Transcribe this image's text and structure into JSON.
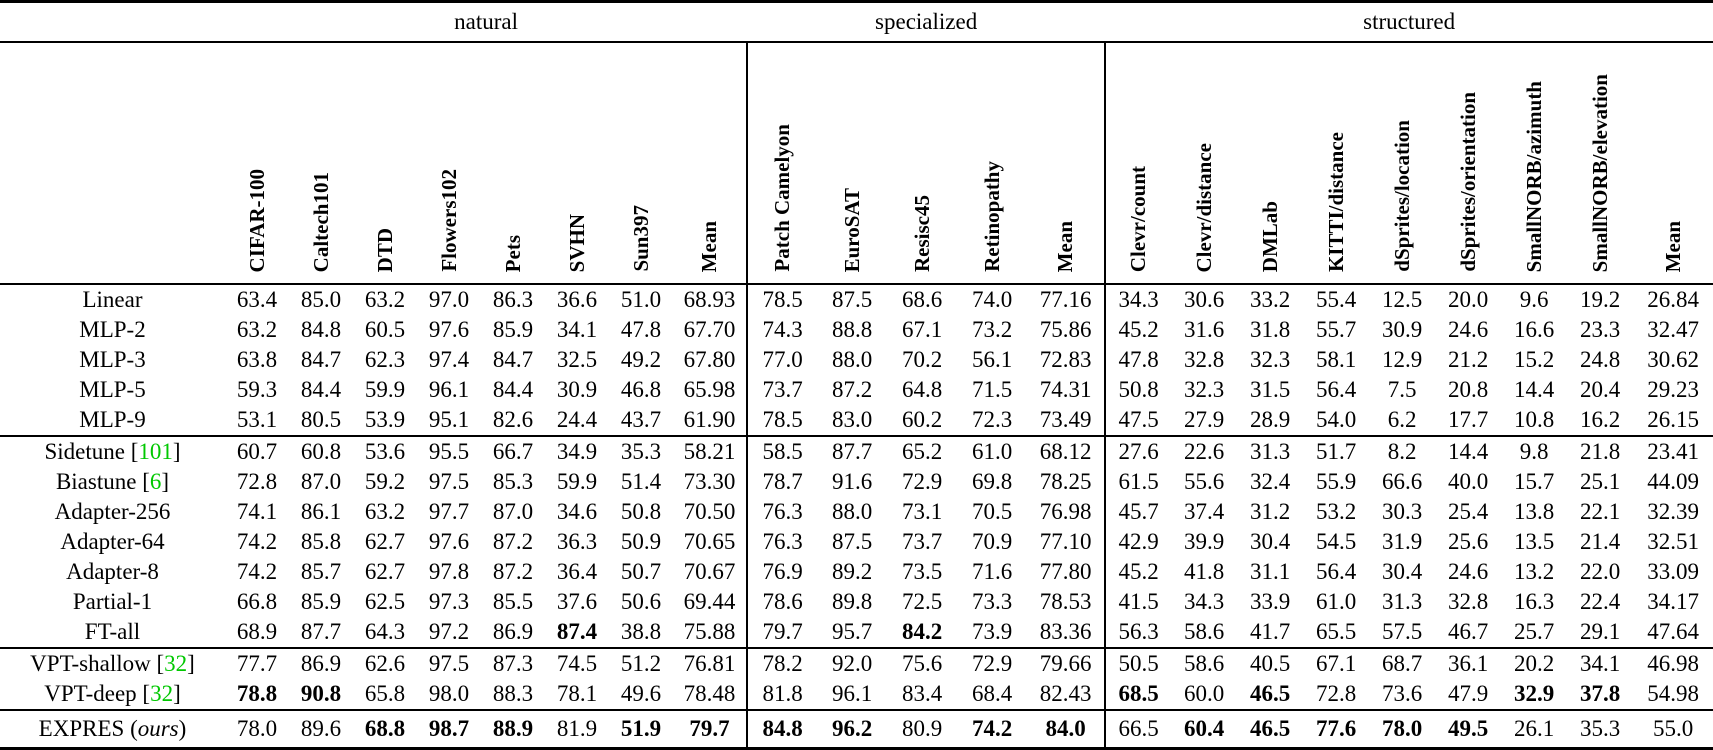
{
  "table": {
    "cite_open": "[",
    "cite_close": "]",
    "ours_open": "(",
    "ours_text": "ours",
    "ours_close": ")",
    "cite_color": "#00c800",
    "groups": [
      {
        "label": "natural",
        "columns": [
          "CIFAR-100",
          "Caltech101",
          "DTD",
          "Flowers102",
          "Pets",
          "SVHN",
          "Sun397",
          "Mean"
        ]
      },
      {
        "label": "specialized",
        "columns": [
          "Patch Camelyon",
          "EuroSAT",
          "Resisc45",
          "Retinopathy",
          "Mean"
        ]
      },
      {
        "label": "structured",
        "columns": [
          "Clevr/count",
          "Clevr/distance",
          "DMLab",
          "KITTI/distance",
          "dSprites/location",
          "dSprites/orientation",
          "SmallNORB/azimuth",
          "SmallNORB/elevation",
          "Mean"
        ]
      }
    ],
    "sections": [
      {
        "rows": [
          {
            "label": "Linear",
            "values": [
              "63.4",
              "85.0",
              "63.2",
              "97.0",
              "86.3",
              "36.6",
              "51.0",
              "68.93",
              "78.5",
              "87.5",
              "68.6",
              "74.0",
              "77.16",
              "34.3",
              "30.6",
              "33.2",
              "55.4",
              "12.5",
              "20.0",
              "9.6",
              "19.2",
              "26.84"
            ],
            "bold": []
          },
          {
            "label": "MLP-2",
            "values": [
              "63.2",
              "84.8",
              "60.5",
              "97.6",
              "85.9",
              "34.1",
              "47.8",
              "67.70",
              "74.3",
              "88.8",
              "67.1",
              "73.2",
              "75.86",
              "45.2",
              "31.6",
              "31.8",
              "55.7",
              "30.9",
              "24.6",
              "16.6",
              "23.3",
              "32.47"
            ],
            "bold": []
          },
          {
            "label": "MLP-3",
            "values": [
              "63.8",
              "84.7",
              "62.3",
              "97.4",
              "84.7",
              "32.5",
              "49.2",
              "67.80",
              "77.0",
              "88.0",
              "70.2",
              "56.1",
              "72.83",
              "47.8",
              "32.8",
              "32.3",
              "58.1",
              "12.9",
              "21.2",
              "15.2",
              "24.8",
              "30.62"
            ],
            "bold": []
          },
          {
            "label": "MLP-5",
            "values": [
              "59.3",
              "84.4",
              "59.9",
              "96.1",
              "84.4",
              "30.9",
              "46.8",
              "65.98",
              "73.7",
              "87.2",
              "64.8",
              "71.5",
              "74.31",
              "50.8",
              "32.3",
              "31.5",
              "56.4",
              "7.5",
              "20.8",
              "14.4",
              "20.4",
              "29.23"
            ],
            "bold": []
          },
          {
            "label": "MLP-9",
            "values": [
              "53.1",
              "80.5",
              "53.9",
              "95.1",
              "82.6",
              "24.4",
              "43.7",
              "61.90",
              "78.5",
              "83.0",
              "60.2",
              "72.3",
              "73.49",
              "47.5",
              "27.9",
              "28.9",
              "54.0",
              "6.2",
              "17.7",
              "10.8",
              "16.2",
              "26.15"
            ],
            "bold": []
          }
        ]
      },
      {
        "rows": [
          {
            "label": "Sidetune",
            "cite": "101",
            "values": [
              "60.7",
              "60.8",
              "53.6",
              "95.5",
              "66.7",
              "34.9",
              "35.3",
              "58.21",
              "58.5",
              "87.7",
              "65.2",
              "61.0",
              "68.12",
              "27.6",
              "22.6",
              "31.3",
              "51.7",
              "8.2",
              "14.4",
              "9.8",
              "21.8",
              "23.41"
            ],
            "bold": []
          },
          {
            "label": "Biastune",
            "cite": "6",
            "values": [
              "72.8",
              "87.0",
              "59.2",
              "97.5",
              "85.3",
              "59.9",
              "51.4",
              "73.30",
              "78.7",
              "91.6",
              "72.9",
              "69.8",
              "78.25",
              "61.5",
              "55.6",
              "32.4",
              "55.9",
              "66.6",
              "40.0",
              "15.7",
              "25.1",
              "44.09"
            ],
            "bold": []
          },
          {
            "label": "Adapter-256",
            "values": [
              "74.1",
              "86.1",
              "63.2",
              "97.7",
              "87.0",
              "34.6",
              "50.8",
              "70.50",
              "76.3",
              "88.0",
              "73.1",
              "70.5",
              "76.98",
              "45.7",
              "37.4",
              "31.2",
              "53.2",
              "30.3",
              "25.4",
              "13.8",
              "22.1",
              "32.39"
            ],
            "bold": []
          },
          {
            "label": "Adapter-64",
            "values": [
              "74.2",
              "85.8",
              "62.7",
              "97.6",
              "87.2",
              "36.3",
              "50.9",
              "70.65",
              "76.3",
              "87.5",
              "73.7",
              "70.9",
              "77.10",
              "42.9",
              "39.9",
              "30.4",
              "54.5",
              "31.9",
              "25.6",
              "13.5",
              "21.4",
              "32.51"
            ],
            "bold": []
          },
          {
            "label": "Adapter-8",
            "values": [
              "74.2",
              "85.7",
              "62.7",
              "97.8",
              "87.2",
              "36.4",
              "50.7",
              "70.67",
              "76.9",
              "89.2",
              "73.5",
              "71.6",
              "77.80",
              "45.2",
              "41.8",
              "31.1",
              "56.4",
              "30.4",
              "24.6",
              "13.2",
              "22.0",
              "33.09"
            ],
            "bold": []
          },
          {
            "label": "Partial-1",
            "values": [
              "66.8",
              "85.9",
              "62.5",
              "97.3",
              "85.5",
              "37.6",
              "50.6",
              "69.44",
              "78.6",
              "89.8",
              "72.5",
              "73.3",
              "78.53",
              "41.5",
              "34.3",
              "33.9",
              "61.0",
              "31.3",
              "32.8",
              "16.3",
              "22.4",
              "34.17"
            ],
            "bold": []
          },
          {
            "label": "FT-all",
            "values": [
              "68.9",
              "87.7",
              "64.3",
              "97.2",
              "86.9",
              "87.4",
              "38.8",
              "75.88",
              "79.7",
              "95.7",
              "84.2",
              "73.9",
              "83.36",
              "56.3",
              "58.6",
              "41.7",
              "65.5",
              "57.5",
              "46.7",
              "25.7",
              "29.1",
              "47.64"
            ],
            "bold": [
              5,
              10
            ]
          }
        ]
      },
      {
        "rows": [
          {
            "label": "VPT-shallow",
            "cite": "32",
            "values": [
              "77.7",
              "86.9",
              "62.6",
              "97.5",
              "87.3",
              "74.5",
              "51.2",
              "76.81",
              "78.2",
              "92.0",
              "75.6",
              "72.9",
              "79.66",
              "50.5",
              "58.6",
              "40.5",
              "67.1",
              "68.7",
              "36.1",
              "20.2",
              "34.1",
              "46.98"
            ],
            "bold": []
          },
          {
            "label": "VPT-deep",
            "cite": "32",
            "values": [
              "78.8",
              "90.8",
              "65.8",
              "98.0",
              "88.3",
              "78.1",
              "49.6",
              "78.48",
              "81.8",
              "96.1",
              "83.4",
              "68.4",
              "82.43",
              "68.5",
              "60.0",
              "46.5",
              "72.8",
              "73.6",
              "47.9",
              "32.9",
              "37.8",
              "54.98"
            ],
            "bold": [
              0,
              1,
              13,
              15,
              19,
              20
            ]
          }
        ]
      },
      {
        "rows": [
          {
            "label": "EXPRES",
            "ours": true,
            "values": [
              "78.0",
              "89.6",
              "68.8",
              "98.7",
              "88.9",
              "81.9",
              "51.9",
              "79.7",
              "84.8",
              "96.2",
              "80.9",
              "74.2",
              "84.0",
              "66.5",
              "60.4",
              "46.5",
              "77.6",
              "78.0",
              "49.5",
              "26.1",
              "35.3",
              "55.0"
            ],
            "bold": [
              2,
              3,
              4,
              6,
              7,
              8,
              9,
              11,
              12,
              14,
              15,
              16,
              17,
              18,
              22
            ]
          }
        ]
      }
    ]
  }
}
